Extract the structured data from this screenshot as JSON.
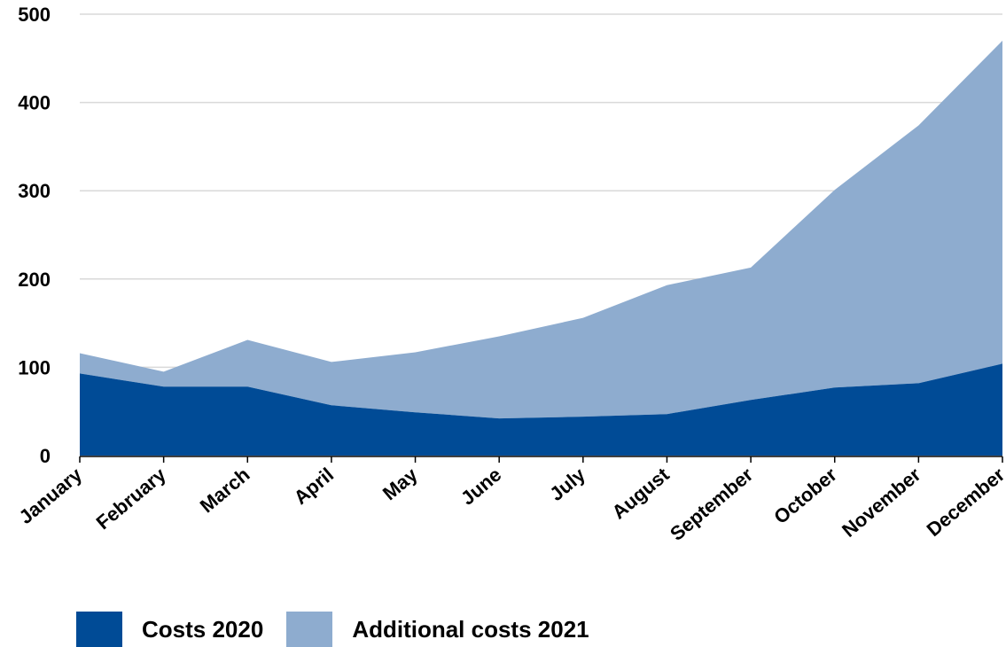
{
  "chart_data": {
    "type": "area",
    "stacked": true,
    "categories": [
      "January",
      "February",
      "March",
      "April",
      "May",
      "June",
      "July",
      "August",
      "September",
      "October",
      "November",
      "December"
    ],
    "series": [
      {
        "name": "Costs 2020",
        "color": "#004b96",
        "values": [
          93,
          78,
          78,
          57,
          49,
          42,
          44,
          47,
          63,
          77,
          82,
          104
        ]
      },
      {
        "name": "Additional costs 2021",
        "color": "#8eaccf",
        "values": [
          23,
          17,
          53,
          49,
          68,
          93,
          112,
          146,
          150,
          224,
          292,
          366
        ]
      }
    ],
    "ylim": [
      0,
      500
    ],
    "yticks": [
      0,
      100,
      200,
      300,
      400,
      500
    ],
    "grid": true,
    "xlabel": "",
    "ylabel": "",
    "title": "",
    "legend_position": "bottom-left"
  },
  "colors": {
    "gridline": "#d9d9d9",
    "axis": "#000000"
  }
}
